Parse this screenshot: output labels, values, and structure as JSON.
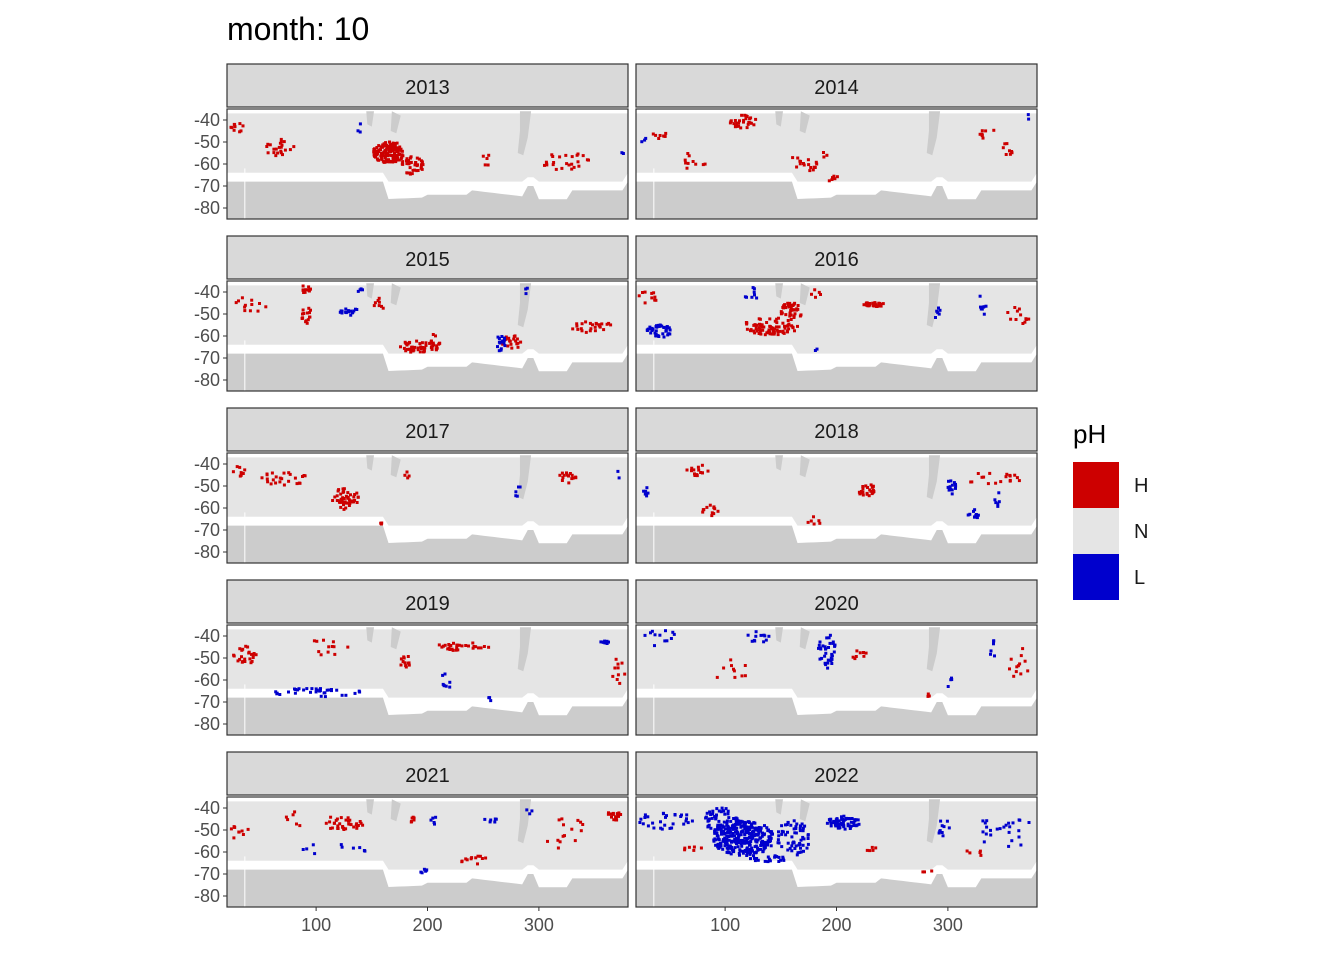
{
  "chart_data": {
    "type": "heatmap",
    "title": "month: 10",
    "facet_variable": "year",
    "panels": [
      {
        "label": "2013",
        "patches": [
          {
            "cls": "H",
            "x": 164,
            "y": -54,
            "rx": 14,
            "ry": 5,
            "n": 130
          },
          {
            "cls": "H",
            "x": 185,
            "y": -60,
            "rx": 10,
            "ry": 4,
            "n": 40
          },
          {
            "cls": "H",
            "x": 65,
            "y": -52,
            "rx": 14,
            "ry": 4,
            "n": 22
          },
          {
            "cls": "H",
            "x": 30,
            "y": -43,
            "rx": 8,
            "ry": 3,
            "n": 10
          },
          {
            "cls": "H",
            "x": 320,
            "y": -58,
            "rx": 25,
            "ry": 4,
            "n": 25
          },
          {
            "cls": "H",
            "x": 252,
            "y": -58,
            "rx": 5,
            "ry": 3,
            "n": 5
          },
          {
            "cls": "L",
            "x": 138,
            "y": -44,
            "rx": 2,
            "ry": 3,
            "n": 3
          },
          {
            "cls": "L",
            "x": 375,
            "y": -54,
            "rx": 2,
            "ry": 1,
            "n": 2
          }
        ]
      },
      {
        "label": "2014",
        "patches": [
          {
            "cls": "H",
            "x": 115,
            "y": -40,
            "rx": 12,
            "ry": 3,
            "n": 30
          },
          {
            "cls": "H",
            "x": 70,
            "y": -58,
            "rx": 12,
            "ry": 4,
            "n": 10
          },
          {
            "cls": "H",
            "x": 175,
            "y": -58,
            "rx": 20,
            "ry": 5,
            "n": 20
          },
          {
            "cls": "H",
            "x": 195,
            "y": -66,
            "rx": 6,
            "ry": 3,
            "n": 6
          },
          {
            "cls": "H",
            "x": 335,
            "y": -46,
            "rx": 8,
            "ry": 3,
            "n": 8
          },
          {
            "cls": "H",
            "x": 350,
            "y": -53,
            "rx": 10,
            "ry": 3,
            "n": 8
          },
          {
            "cls": "H",
            "x": 40,
            "y": -45,
            "rx": 8,
            "ry": 3,
            "n": 8
          },
          {
            "cls": "L",
            "x": 25,
            "y": -48,
            "rx": 3,
            "ry": 3,
            "n": 3
          },
          {
            "cls": "L",
            "x": 372,
            "y": -38,
            "rx": 2,
            "ry": 2,
            "n": 2
          }
        ]
      },
      {
        "label": "2015",
        "patches": [
          {
            "cls": "H",
            "x": 90,
            "y": -38,
            "rx": 5,
            "ry": 2,
            "n": 12
          },
          {
            "cls": "H",
            "x": 90,
            "y": -50,
            "rx": 6,
            "ry": 4,
            "n": 16
          },
          {
            "cls": "H",
            "x": 190,
            "y": -64,
            "rx": 16,
            "ry": 3,
            "n": 40
          },
          {
            "cls": "H",
            "x": 205,
            "y": -62,
            "rx": 5,
            "ry": 4,
            "n": 15
          },
          {
            "cls": "H",
            "x": 275,
            "y": -62,
            "rx": 10,
            "ry": 3,
            "n": 18
          },
          {
            "cls": "H",
            "x": 345,
            "y": -55,
            "rx": 20,
            "ry": 3,
            "n": 25
          },
          {
            "cls": "H",
            "x": 40,
            "y": -45,
            "rx": 14,
            "ry": 4,
            "n": 12
          },
          {
            "cls": "H",
            "x": 155,
            "y": -45,
            "rx": 6,
            "ry": 3,
            "n": 8
          },
          {
            "cls": "L",
            "x": 128,
            "y": -48,
            "rx": 8,
            "ry": 2,
            "n": 18
          },
          {
            "cls": "L",
            "x": 265,
            "y": -62,
            "rx": 4,
            "ry": 5,
            "n": 18
          },
          {
            "cls": "L",
            "x": 138,
            "y": -38,
            "rx": 4,
            "ry": 2,
            "n": 4
          },
          {
            "cls": "L",
            "x": 288,
            "y": -39,
            "rx": 2,
            "ry": 2,
            "n": 3
          }
        ]
      },
      {
        "label": "2016",
        "patches": [
          {
            "cls": "H",
            "x": 140,
            "y": -55,
            "rx": 25,
            "ry": 4,
            "n": 80
          },
          {
            "cls": "H",
            "x": 158,
            "y": -48,
            "rx": 10,
            "ry": 4,
            "n": 40
          },
          {
            "cls": "H",
            "x": 232,
            "y": -45,
            "rx": 10,
            "ry": 1,
            "n": 30
          },
          {
            "cls": "H",
            "x": 30,
            "y": -42,
            "rx": 10,
            "ry": 3,
            "n": 10
          },
          {
            "cls": "H",
            "x": 362,
            "y": -50,
            "rx": 10,
            "ry": 5,
            "n": 12
          },
          {
            "cls": "H",
            "x": 180,
            "y": -40,
            "rx": 5,
            "ry": 2,
            "n": 5
          },
          {
            "cls": "L",
            "x": 40,
            "y": -57,
            "rx": 12,
            "ry": 3,
            "n": 40
          },
          {
            "cls": "L",
            "x": 122,
            "y": -40,
            "rx": 8,
            "ry": 3,
            "n": 8
          },
          {
            "cls": "L",
            "x": 330,
            "y": -45,
            "rx": 4,
            "ry": 5,
            "n": 8
          },
          {
            "cls": "L",
            "x": 290,
            "y": -50,
            "rx": 3,
            "ry": 5,
            "n": 6
          },
          {
            "cls": "L",
            "x": 180,
            "y": -66,
            "rx": 3,
            "ry": 1,
            "n": 2
          }
        ]
      },
      {
        "label": "2017",
        "patches": [
          {
            "cls": "H",
            "x": 125,
            "y": -55,
            "rx": 12,
            "ry": 5,
            "n": 45
          },
          {
            "cls": "H",
            "x": 70,
            "y": -46,
            "rx": 25,
            "ry": 3,
            "n": 25
          },
          {
            "cls": "H",
            "x": 30,
            "y": -42,
            "rx": 8,
            "ry": 3,
            "n": 8
          },
          {
            "cls": "H",
            "x": 325,
            "y": -45,
            "rx": 8,
            "ry": 3,
            "n": 15
          },
          {
            "cls": "H",
            "x": 180,
            "y": -44,
            "rx": 3,
            "ry": 2,
            "n": 4
          },
          {
            "cls": "H",
            "x": 155,
            "y": -66,
            "rx": 3,
            "ry": 1,
            "n": 3
          },
          {
            "cls": "L",
            "x": 280,
            "y": -52,
            "rx": 3,
            "ry": 5,
            "n": 5
          },
          {
            "cls": "L",
            "x": 370,
            "y": -44,
            "rx": 2,
            "ry": 2,
            "n": 2
          }
        ]
      },
      {
        "label": "2018",
        "patches": [
          {
            "cls": "H",
            "x": 225,
            "y": -51,
            "rx": 8,
            "ry": 3,
            "n": 25
          },
          {
            "cls": "H",
            "x": 75,
            "y": -42,
            "rx": 12,
            "ry": 3,
            "n": 15
          },
          {
            "cls": "H",
            "x": 85,
            "y": -60,
            "rx": 8,
            "ry": 3,
            "n": 12
          },
          {
            "cls": "H",
            "x": 340,
            "y": -46,
            "rx": 25,
            "ry": 3,
            "n": 18
          },
          {
            "cls": "H",
            "x": 180,
            "y": -65,
            "rx": 8,
            "ry": 2,
            "n": 6
          },
          {
            "cls": "L",
            "x": 302,
            "y": -49,
            "rx": 4,
            "ry": 4,
            "n": 14
          },
          {
            "cls": "L",
            "x": 322,
            "y": -62,
            "rx": 8,
            "ry": 2,
            "n": 10
          },
          {
            "cls": "L",
            "x": 28,
            "y": -52,
            "rx": 6,
            "ry": 2,
            "n": 6
          },
          {
            "cls": "L",
            "x": 345,
            "y": -55,
            "rx": 6,
            "ry": 4,
            "n": 6
          }
        ]
      },
      {
        "label": "2019",
        "patches": [
          {
            "cls": "H",
            "x": 35,
            "y": -48,
            "rx": 12,
            "ry": 4,
            "n": 25
          },
          {
            "cls": "H",
            "x": 230,
            "y": -44,
            "rx": 25,
            "ry": 2,
            "n": 30
          },
          {
            "cls": "H",
            "x": 180,
            "y": -51,
            "rx": 6,
            "ry": 3,
            "n": 12
          },
          {
            "cls": "H",
            "x": 110,
            "y": -45,
            "rx": 20,
            "ry": 5,
            "n": 12
          },
          {
            "cls": "H",
            "x": 370,
            "y": -55,
            "rx": 6,
            "ry": 6,
            "n": 10
          },
          {
            "cls": "L",
            "x": 100,
            "y": -65,
            "rx": 40,
            "ry": 2,
            "n": 35
          },
          {
            "cls": "L",
            "x": 358,
            "y": -42,
            "rx": 4,
            "ry": 1,
            "n": 8
          },
          {
            "cls": "L",
            "x": 215,
            "y": -60,
            "rx": 5,
            "ry": 4,
            "n": 8
          },
          {
            "cls": "L",
            "x": 255,
            "y": -68,
            "rx": 3,
            "ry": 1,
            "n": 3
          }
        ]
      },
      {
        "label": "2020",
        "patches": [
          {
            "cls": "L",
            "x": 190,
            "y": -46,
            "rx": 8,
            "ry": 8,
            "n": 35
          },
          {
            "cls": "L",
            "x": 130,
            "y": -40,
            "rx": 12,
            "ry": 3,
            "n": 12
          },
          {
            "cls": "L",
            "x": 40,
            "y": -40,
            "rx": 15,
            "ry": 4,
            "n": 12
          },
          {
            "cls": "L",
            "x": 340,
            "y": -45,
            "rx": 6,
            "ry": 4,
            "n": 6
          },
          {
            "cls": "L",
            "x": 300,
            "y": -60,
            "rx": 4,
            "ry": 3,
            "n": 4
          },
          {
            "cls": "H",
            "x": 220,
            "y": -48,
            "rx": 10,
            "ry": 2,
            "n": 8
          },
          {
            "cls": "H",
            "x": 360,
            "y": -52,
            "rx": 12,
            "ry": 8,
            "n": 12
          },
          {
            "cls": "H",
            "x": 100,
            "y": -55,
            "rx": 20,
            "ry": 5,
            "n": 10
          },
          {
            "cls": "H",
            "x": 280,
            "y": -66,
            "rx": 3,
            "ry": 1,
            "n": 3
          }
        ]
      },
      {
        "label": "2021",
        "patches": [
          {
            "cls": "H",
            "x": 125,
            "y": -46,
            "rx": 18,
            "ry": 4,
            "n": 35
          },
          {
            "cls": "H",
            "x": 365,
            "y": -43,
            "rx": 8,
            "ry": 2,
            "n": 20
          },
          {
            "cls": "H",
            "x": 240,
            "y": -63,
            "rx": 15,
            "ry": 2,
            "n": 12
          },
          {
            "cls": "H",
            "x": 30,
            "y": -50,
            "rx": 8,
            "ry": 5,
            "n": 10
          },
          {
            "cls": "H",
            "x": 320,
            "y": -50,
            "rx": 20,
            "ry": 8,
            "n": 15
          },
          {
            "cls": "H",
            "x": 185,
            "y": -44,
            "rx": 3,
            "ry": 2,
            "n": 6
          },
          {
            "cls": "H",
            "x": 80,
            "y": -45,
            "rx": 10,
            "ry": 4,
            "n": 6
          },
          {
            "cls": "L",
            "x": 195,
            "y": -68,
            "rx": 5,
            "ry": 1,
            "n": 6
          },
          {
            "cls": "L",
            "x": 255,
            "y": -45,
            "rx": 8,
            "ry": 1,
            "n": 6
          },
          {
            "cls": "L",
            "x": 205,
            "y": -46,
            "rx": 4,
            "ry": 3,
            "n": 5
          },
          {
            "cls": "L",
            "x": 115,
            "y": -58,
            "rx": 30,
            "ry": 3,
            "n": 10
          },
          {
            "cls": "L",
            "x": 290,
            "y": -40,
            "rx": 3,
            "ry": 2,
            "n": 3
          }
        ]
      },
      {
        "label": "2022",
        "patches": [
          {
            "cls": "L",
            "x": 115,
            "y": -53,
            "rx": 28,
            "ry": 8,
            "n": 300
          },
          {
            "cls": "L",
            "x": 95,
            "y": -45,
            "rx": 15,
            "ry": 6,
            "n": 60
          },
          {
            "cls": "L",
            "x": 160,
            "y": -53,
            "rx": 15,
            "ry": 8,
            "n": 60
          },
          {
            "cls": "L",
            "x": 205,
            "y": -46,
            "rx": 15,
            "ry": 3,
            "n": 60
          },
          {
            "cls": "L",
            "x": 45,
            "y": -45,
            "rx": 25,
            "ry": 4,
            "n": 30
          },
          {
            "cls": "L",
            "x": 295,
            "y": -48,
            "rx": 5,
            "ry": 5,
            "n": 10
          },
          {
            "cls": "L",
            "x": 350,
            "y": -50,
            "rx": 25,
            "ry": 8,
            "n": 25
          },
          {
            "cls": "L",
            "x": 140,
            "y": -62,
            "rx": 20,
            "ry": 2,
            "n": 20
          },
          {
            "cls": "H",
            "x": 230,
            "y": -58,
            "rx": 5,
            "ry": 1,
            "n": 5
          },
          {
            "cls": "H",
            "x": 70,
            "y": -58,
            "rx": 10,
            "ry": 1,
            "n": 6
          },
          {
            "cls": "H",
            "x": 320,
            "y": -60,
            "rx": 10,
            "ry": 2,
            "n": 5
          },
          {
            "cls": "H",
            "x": 280,
            "y": -68,
            "rx": 5,
            "ry": 1,
            "n": 3
          }
        ]
      }
    ],
    "x_ticks": [
      100,
      200,
      300
    ],
    "y_ticks": [
      -40,
      -50,
      -60,
      -70,
      -80
    ],
    "x_range": [
      20,
      380
    ],
    "y_range": [
      -85,
      -35
    ],
    "legend": {
      "title": "pH",
      "position": "right",
      "entries": [
        {
          "key": "H",
          "label": "H",
          "color": "#cd0000"
        },
        {
          "key": "N",
          "label": "N",
          "color": "#e5e5e5"
        },
        {
          "key": "L",
          "label": "L",
          "color": "#0000cd"
        }
      ]
    },
    "grid": true
  },
  "colors": {
    "high": "#cd0000",
    "normal": "#e5e5e5",
    "low": "#0000cd",
    "land": "#cccccc",
    "strip": "#d9d9d9",
    "panel_border": "#333333"
  }
}
